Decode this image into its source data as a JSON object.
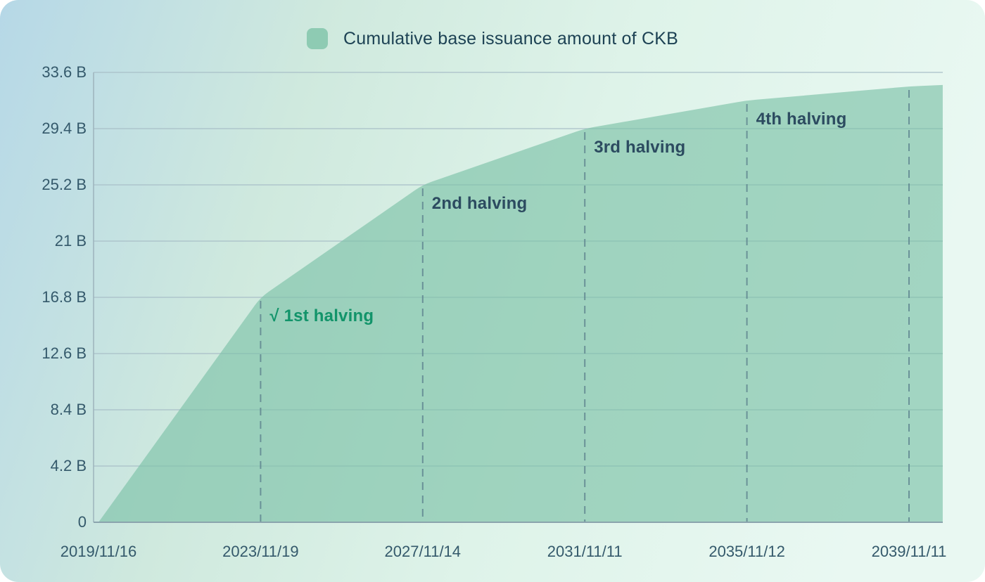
{
  "legend": {
    "label": "Cumulative base issuance amount of CKB",
    "swatch_color": "#8ecbb3"
  },
  "chart_data": {
    "type": "area",
    "title": "Cumulative base issuance amount of CKB",
    "grid": "horizontal",
    "legend_position": "top-center",
    "ylim": [
      0,
      33.6
    ],
    "y_unit": "B",
    "y_tick_labels": [
      "0",
      "4.2 B",
      "8.4 B",
      "12.6 B",
      "16.8 B",
      "21 B",
      "25.2 B",
      "29.4 B",
      "33.6 B"
    ],
    "y_tick_values": [
      0,
      4.2,
      8.4,
      12.6,
      16.8,
      21,
      25.2,
      29.4,
      33.6
    ],
    "x_tick_labels": [
      "2019/11/16",
      "2023/11/19",
      "2027/11/14",
      "2031/11/11",
      "2035/11/12",
      "2039/11/11"
    ],
    "series": [
      {
        "name": "Cumulative base issuance amount of CKB",
        "points": [
          {
            "t": 0,
            "date": "2019/11/16",
            "value_b": 0
          },
          {
            "t": 1,
            "date": "2023/11/19",
            "value_b": 16.8
          },
          {
            "t": 2,
            "date": "2027/11/14",
            "value_b": 25.2
          },
          {
            "t": 3,
            "date": "2031/11/11",
            "value_b": 29.4
          },
          {
            "t": 4,
            "date": "2035/11/12",
            "value_b": 31.5
          },
          {
            "t": 5,
            "date": "2039/11/11",
            "value_b": 32.55
          },
          {
            "t": 5.208,
            "date": "",
            "value_b": 32.66
          }
        ]
      }
    ],
    "halving_guides_at_ticks": [
      1,
      2,
      3,
      4,
      5
    ],
    "annotations": [
      {
        "at_tick": 1,
        "label": "√ 1st halving",
        "style": "done"
      },
      {
        "at_tick": 2,
        "label": "2nd halving",
        "style": "future"
      },
      {
        "at_tick": 3,
        "label": "3rd halving",
        "style": "future"
      },
      {
        "at_tick": 4,
        "label": "4th halving",
        "style": "future"
      }
    ]
  },
  "colors": {
    "area_fill": "rgba(125,194,168,0.65)",
    "legend_swatch": "#8ecbb3",
    "gridline": "#a9bfc8",
    "axis_border_left": "#9db3bc",
    "axis_line_bottom": "#8ba4ad",
    "dashed_guide": "#5d828e",
    "axis_label_text": "#34596b",
    "legend_text": "#1d4254",
    "annotation_done": "#12946a",
    "annotation_future": "#2c4b60"
  }
}
